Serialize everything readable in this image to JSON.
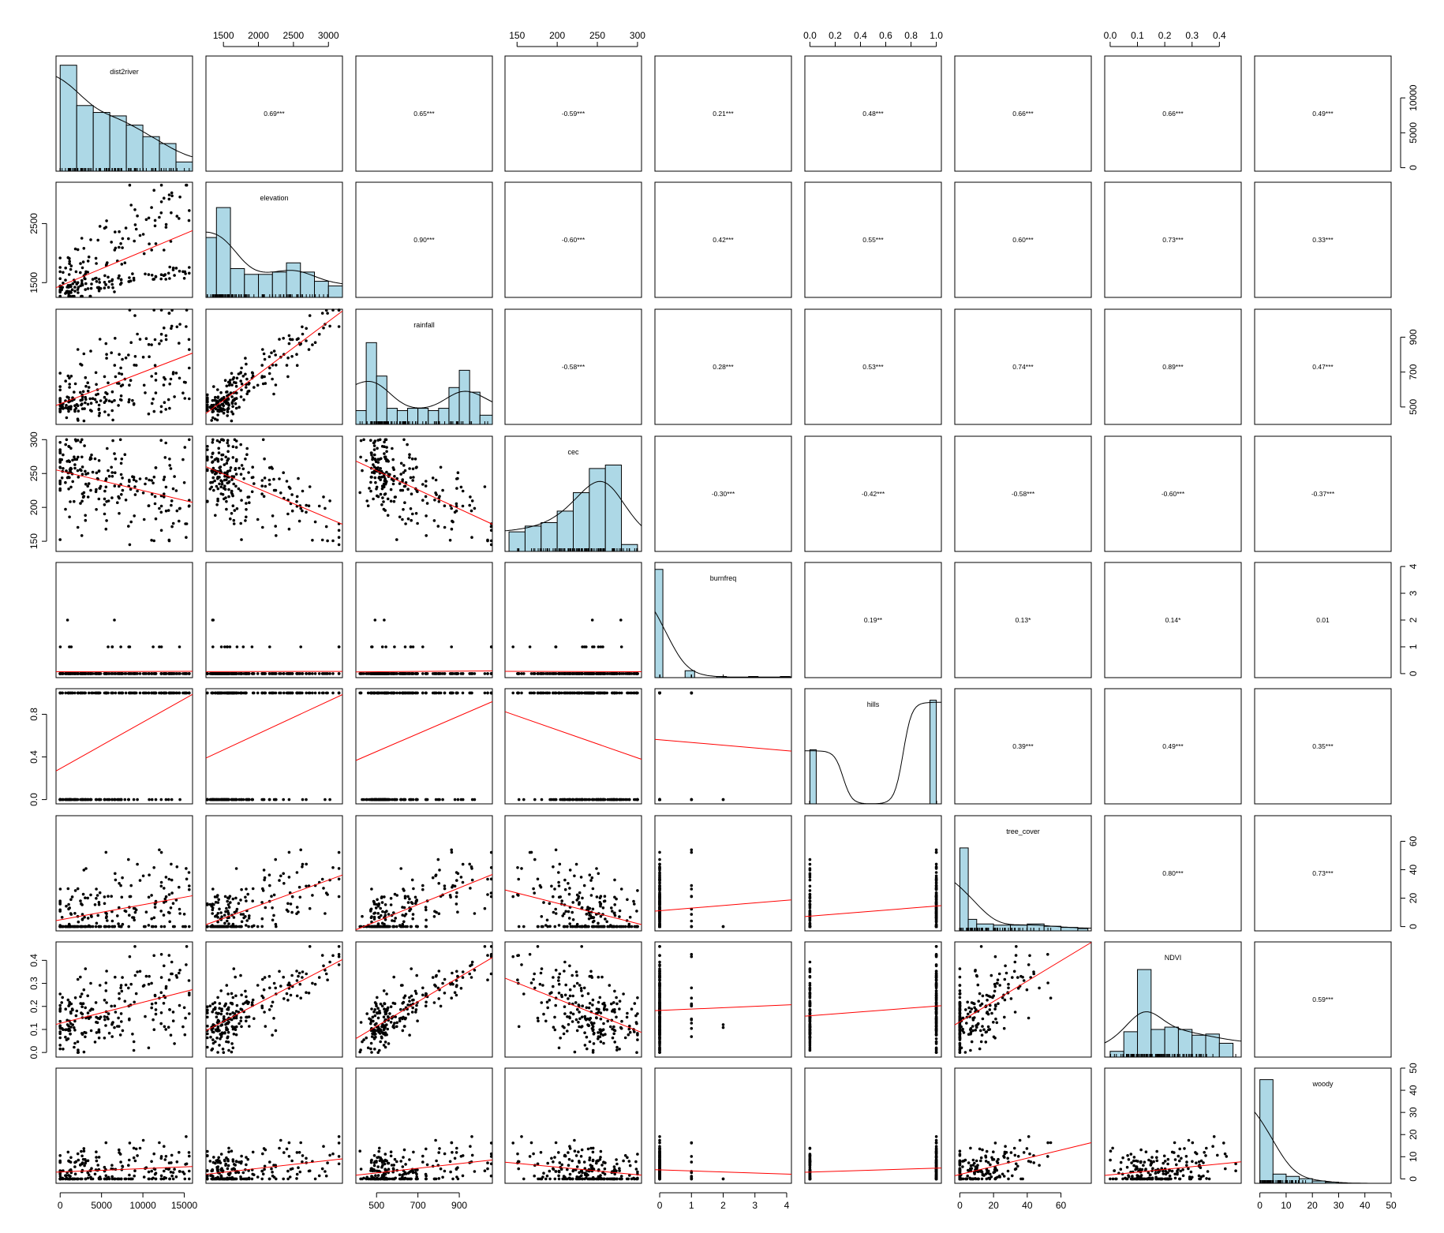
{
  "chart_data": {
    "type": "scatter-matrix",
    "variables": [
      "dist2river",
      "elevation",
      "rainfall",
      "cec",
      "burnfreq",
      "hills",
      "tree_cover",
      "NDVI",
      "woody"
    ],
    "ranges": {
      "dist2river": [
        -500,
        16000
      ],
      "elevation": [
        1250,
        3200
      ],
      "rainfall": [
        400,
        1060
      ],
      "cec": [
        135,
        305
      ],
      "burnfreq": [
        -0.15,
        4.15
      ],
      "hills": [
        -0.04,
        1.04
      ],
      "tree_cover": [
        -3,
        78
      ],
      "NDVI": [
        -0.02,
        0.48
      ],
      "woody": [
        -2,
        50
      ]
    },
    "axis_ticks": {
      "dist2river": [
        "0",
        "5000",
        "10000",
        "15000"
      ],
      "elevation": [
        "1500",
        "2000",
        "2500",
        "3000"
      ],
      "rainfall": [
        "500",
        "700",
        "900"
      ],
      "cec": [
        "150",
        "200",
        "250",
        "300"
      ],
      "burnfreq": [
        "0",
        "1",
        "2",
        "3",
        "4"
      ],
      "hills": [
        "0.0",
        "0.2",
        "0.4",
        "0.6",
        "0.8",
        "1.0"
      ],
      "tree_cover": [
        "0",
        "20",
        "40",
        "60"
      ],
      "NDVI": [
        "0.0",
        "0.1",
        "0.2",
        "0.3",
        "0.4"
      ],
      "woody": [
        "0",
        "10",
        "20",
        "30",
        "40",
        "50"
      ]
    },
    "left_axis_ticks": {
      "elevation": [
        "1500",
        "2500"
      ],
      "cec": [
        "150",
        "200",
        "250",
        "300"
      ],
      "hills": [
        "0.0",
        "0.4",
        "0.8"
      ],
      "NDVI": [
        "0.0",
        "0.1",
        "0.2",
        "0.3",
        "0.4"
      ]
    },
    "right_axis_ticks": {
      "dist2river": [
        "0",
        "5000",
        "10000"
      ],
      "rainfall": [
        "500",
        "700",
        "900"
      ],
      "burnfreq": [
        "0",
        "1",
        "2",
        "3",
        "4"
      ],
      "tree_cover": [
        "0",
        "20",
        "40",
        "60"
      ],
      "woody": [
        "0",
        "10",
        "20",
        "30",
        "40",
        "50"
      ]
    },
    "correlations": [
      [
        "",
        "0.69***",
        "0.65***",
        "-0.59***",
        "0.21***",
        "0.48***",
        "0.66***",
        "0.66***",
        "0.49***"
      ],
      [
        "",
        "",
        "0.90***",
        "-0.60***",
        "0.42***",
        "0.55***",
        "0.60***",
        "0.73***",
        "0.33***"
      ],
      [
        "",
        "",
        "",
        "-0.58***",
        "0.28***",
        "0.53***",
        "0.74***",
        "0.89***",
        "0.47***"
      ],
      [
        "",
        "",
        "",
        "",
        "-0.30***",
        "-0.42***",
        "-0.58***",
        "-0.60***",
        "-0.37***"
      ],
      [
        "",
        "",
        "",
        "",
        "",
        "0.19**",
        "0.13*",
        "0.14*",
        "0.01"
      ],
      [
        "",
        "",
        "",
        "",
        "",
        "",
        "0.39***",
        "0.49***",
        "0.35***"
      ],
      [
        "",
        "",
        "",
        "",
        "",
        "",
        "",
        "0.80***",
        "0.73***"
      ],
      [
        "",
        "",
        "",
        "",
        "",
        "",
        "",
        "",
        "0.59***"
      ],
      [
        "",
        "",
        "",
        "",
        "",
        "",
        "",
        "",
        ""
      ]
    ],
    "histograms": {
      "dist2river": {
        "edges": [
          0,
          2000,
          4000,
          6000,
          8000,
          10000,
          12000,
          14000,
          16000
        ],
        "heights": [
          0.92,
          0.57,
          0.51,
          0.48,
          0.4,
          0.3,
          0.24,
          0.08
        ]
      },
      "elevation": {
        "edges": [
          1250,
          1400,
          1600,
          1800,
          2000,
          2200,
          2400,
          2600,
          2800,
          3000,
          3200
        ],
        "heights": [
          0.52,
          0.78,
          0.25,
          0.2,
          0.2,
          0.22,
          0.3,
          0.22,
          0.14,
          0.1
        ]
      },
      "rainfall": {
        "edges": [
          400,
          450,
          500,
          550,
          600,
          650,
          700,
          750,
          800,
          850,
          900,
          950,
          1000,
          1060
        ],
        "heights": [
          0.12,
          0.71,
          0.42,
          0.14,
          0.12,
          0.14,
          0.14,
          0.12,
          0.14,
          0.32,
          0.47,
          0.28,
          0.08
        ]
      },
      "cec": {
        "edges": [
          140,
          160,
          180,
          200,
          220,
          240,
          260,
          280,
          300
        ],
        "heights": [
          0.17,
          0.22,
          0.25,
          0.35,
          0.51,
          0.72,
          0.75,
          0.06
        ]
      },
      "burnfreq": {
        "edges": [
          -0.15,
          0.1,
          0.8,
          1.1,
          1.8,
          2.1,
          2.8,
          3.1,
          3.8,
          4.1
        ],
        "heights": [
          0.94,
          0.0,
          0.06,
          0.0,
          0.01,
          0.0,
          0.01,
          0.0,
          0.01
        ]
      },
      "hills": {
        "edges": [
          0.0,
          0.05,
          0.95,
          1.0
        ],
        "heights": [
          0.47,
          0.0,
          0.9
        ]
      },
      "tree_cover": {
        "edges": [
          0,
          5,
          10,
          20,
          30,
          40,
          50,
          60,
          70,
          76
        ],
        "heights": [
          0.72,
          0.1,
          0.06,
          0.05,
          0.05,
          0.06,
          0.04,
          0.03,
          0.02
        ]
      },
      "NDVI": {
        "edges": [
          0.0,
          0.05,
          0.1,
          0.15,
          0.2,
          0.25,
          0.3,
          0.35,
          0.4,
          0.45
        ],
        "heights": [
          0.05,
          0.22,
          0.76,
          0.24,
          0.26,
          0.24,
          0.19,
          0.2,
          0.12
        ]
      },
      "woody": {
        "edges": [
          0,
          5,
          10,
          15,
          20,
          25,
          30,
          35,
          40,
          45,
          50
        ],
        "heights": [
          0.9,
          0.08,
          0.06,
          0.04,
          0.02,
          0.01,
          0.0,
          0.0,
          0.0,
          0.0
        ]
      }
    }
  }
}
